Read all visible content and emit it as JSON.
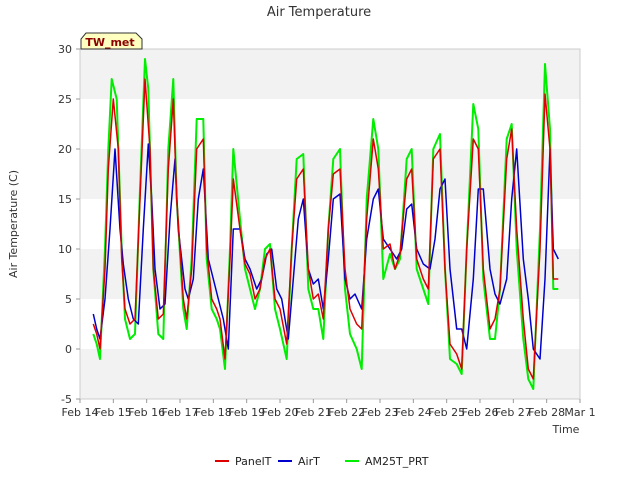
{
  "chart_data": {
    "type": "line",
    "title": "Air Temperature",
    "xlabel": "Time",
    "ylabel": "Air Temperature (C)",
    "station_label": "TW_met",
    "ylim": [
      -5,
      30
    ],
    "yticks": [
      -5,
      0,
      5,
      10,
      15,
      20,
      25,
      30
    ],
    "xlim": [
      14,
      29
    ],
    "xticks": [
      14,
      15,
      16,
      17,
      18,
      19,
      20,
      21,
      22,
      23,
      24,
      25,
      26,
      27,
      28,
      29
    ],
    "xtick_labels": [
      "Feb 14",
      "Feb 15",
      "Feb 16",
      "Feb 17",
      "Feb 18",
      "Feb 19",
      "Feb 20",
      "Feb 21",
      "Feb 22",
      "Feb 23",
      "Feb 24",
      "Feb 25",
      "Feb 26",
      "Feb 27",
      "Feb 28",
      "Mar 1"
    ],
    "legend_position": "bottom-center",
    "grid": "alternating horizontal bands",
    "colors": {
      "PanelT": "#dd0000",
      "AirT": "#0000cc",
      "AM25T_PRT": "#00ee00",
      "band": "#f2f2f2",
      "station_bg": "#ffffc0"
    },
    "series": [
      {
        "name": "PanelT",
        "x": [
          14.4,
          14.5,
          14.6,
          14.75,
          14.85,
          15.0,
          15.15,
          15.25,
          15.35,
          15.5,
          15.65,
          15.8,
          15.95,
          16.1,
          16.2,
          16.35,
          16.5,
          16.65,
          16.8,
          16.9,
          17.1,
          17.2,
          17.35,
          17.5,
          17.7,
          17.8,
          17.95,
          18.1,
          18.2,
          18.35,
          18.5,
          18.6,
          18.8,
          18.95,
          19.1,
          19.25,
          19.4,
          19.55,
          19.7,
          19.85,
          20.0,
          20.2,
          20.35,
          20.5,
          20.7,
          20.85,
          21.0,
          21.15,
          21.3,
          21.45,
          21.6,
          21.8,
          21.95,
          22.1,
          22.3,
          22.45,
          22.6,
          22.8,
          22.95,
          23.1,
          23.3,
          23.45,
          23.6,
          23.8,
          23.95,
          24.1,
          24.3,
          24.45,
          24.6,
          24.8,
          24.95,
          25.1,
          25.3,
          25.45,
          25.6,
          25.8,
          25.95,
          26.1,
          26.3,
          26.45,
          26.6,
          26.8,
          26.95,
          27.1,
          27.3,
          27.45,
          27.6,
          27.8,
          27.95,
          28.1,
          28.2,
          28.35
        ],
        "y": [
          2.5,
          1.5,
          0.0,
          8.0,
          18.0,
          25.0,
          20.0,
          9.0,
          4.0,
          2.5,
          3.0,
          15.0,
          27.0,
          20.0,
          8.0,
          3.0,
          3.5,
          18.0,
          25.0,
          15.0,
          5.0,
          3.0,
          8.0,
          20.0,
          21.0,
          10.0,
          5.0,
          4.0,
          3.0,
          -1.0,
          9.0,
          17.0,
          12.0,
          8.5,
          7.5,
          5.0,
          6.0,
          9.0,
          10.0,
          5.0,
          4.0,
          0.5,
          10.0,
          17.0,
          18.0,
          8.0,
          5.0,
          5.5,
          3.0,
          12.0,
          17.5,
          18.0,
          8.0,
          4.0,
          2.5,
          2.0,
          13.0,
          21.0,
          18.0,
          10.0,
          10.5,
          8.0,
          9.5,
          17.0,
          18.0,
          9.0,
          7.0,
          6.0,
          19.0,
          20.0,
          8.0,
          0.5,
          -0.5,
          -2.0,
          10.0,
          21.0,
          20.0,
          8.0,
          2.0,
          3.0,
          6.0,
          19.0,
          22.0,
          12.0,
          3.0,
          -2.0,
          -3.0,
          10.0,
          25.5,
          20.0,
          7.0,
          7.0
        ]
      },
      {
        "name": "AirT",
        "x": [
          14.4,
          14.5,
          14.6,
          14.75,
          14.9,
          15.05,
          15.2,
          15.3,
          15.45,
          15.6,
          15.75,
          15.9,
          16.05,
          16.15,
          16.25,
          16.4,
          16.55,
          16.7,
          16.85,
          16.95,
          17.15,
          17.25,
          17.4,
          17.55,
          17.7,
          17.85,
          18.0,
          18.15,
          18.3,
          18.45,
          18.6,
          18.8,
          18.95,
          19.1,
          19.3,
          19.45,
          19.6,
          19.75,
          19.9,
          20.05,
          20.25,
          20.4,
          20.55,
          20.7,
          20.85,
          21.0,
          21.15,
          21.3,
          21.45,
          21.6,
          21.8,
          21.95,
          22.1,
          22.25,
          22.45,
          22.6,
          22.8,
          22.95,
          23.1,
          23.3,
          23.5,
          23.65,
          23.8,
          23.95,
          24.1,
          24.3,
          24.5,
          24.65,
          24.8,
          24.95,
          25.1,
          25.3,
          25.45,
          25.6,
          25.8,
          25.95,
          26.1,
          26.3,
          26.45,
          26.6,
          26.8,
          26.95,
          27.1,
          27.3,
          27.45,
          27.6,
          27.8,
          27.95,
          28.1,
          28.2,
          28.35
        ],
        "y": [
          3.5,
          2.0,
          1.0,
          5.0,
          12.0,
          20.0,
          12.0,
          8.5,
          5.0,
          3.0,
          2.5,
          12.0,
          20.5,
          15.0,
          8.0,
          4.0,
          4.5,
          13.0,
          19.0,
          12.0,
          6.0,
          5.0,
          7.0,
          15.0,
          18.0,
          9.0,
          7.0,
          5.0,
          3.0,
          0.0,
          12.0,
          12.0,
          9.0,
          8.0,
          6.0,
          7.0,
          9.5,
          10.0,
          6.0,
          5.0,
          1.0,
          7.0,
          13.0,
          15.0,
          8.0,
          6.5,
          7.0,
          4.0,
          9.0,
          15.0,
          15.5,
          7.0,
          5.0,
          5.5,
          4.0,
          11.0,
          15.0,
          16.0,
          11.0,
          10.0,
          9.0,
          10.0,
          14.0,
          14.5,
          10.0,
          8.5,
          8.0,
          11.0,
          16.0,
          17.0,
          8.0,
          2.0,
          2.0,
          0.0,
          7.0,
          16.0,
          16.0,
          8.0,
          5.5,
          4.5,
          7.0,
          15.0,
          20.0,
          9.0,
          5.0,
          0.0,
          -1.0,
          7.0,
          20.0,
          10.0,
          9.0
        ]
      },
      {
        "name": "AM25T_PRT",
        "x": [
          14.4,
          14.5,
          14.6,
          14.75,
          14.85,
          14.95,
          15.1,
          15.25,
          15.35,
          15.5,
          15.65,
          15.8,
          15.95,
          16.05,
          16.2,
          16.35,
          16.5,
          16.65,
          16.8,
          16.9,
          17.1,
          17.2,
          17.35,
          17.5,
          17.7,
          17.8,
          17.95,
          18.1,
          18.2,
          18.35,
          18.5,
          18.6,
          18.8,
          18.95,
          19.1,
          19.25,
          19.4,
          19.55,
          19.7,
          19.85,
          20.0,
          20.2,
          20.35,
          20.5,
          20.7,
          20.85,
          21.0,
          21.15,
          21.3,
          21.45,
          21.6,
          21.8,
          21.95,
          22.1,
          22.3,
          22.45,
          22.6,
          22.8,
          22.95,
          23.1,
          23.3,
          23.45,
          23.6,
          23.8,
          23.95,
          24.1,
          24.3,
          24.45,
          24.6,
          24.8,
          24.95,
          25.1,
          25.3,
          25.45,
          25.6,
          25.8,
          25.95,
          26.1,
          26.3,
          26.45,
          26.6,
          26.8,
          26.95,
          27.1,
          27.3,
          27.45,
          27.6,
          27.8,
          27.95,
          28.1,
          28.2,
          28.35
        ],
        "y": [
          1.5,
          0.5,
          -1.0,
          10.0,
          20.0,
          27.0,
          25.0,
          10.0,
          3.0,
          1.0,
          1.5,
          16.0,
          29.0,
          26.0,
          8.0,
          1.5,
          1.0,
          20.0,
          27.0,
          15.0,
          4.0,
          2.0,
          9.0,
          23.0,
          23.0,
          9.0,
          4.0,
          3.0,
          2.0,
          -2.0,
          10.0,
          20.0,
          13.0,
          8.0,
          6.0,
          4.0,
          6.0,
          10.0,
          10.5,
          4.0,
          2.0,
          -1.0,
          10.0,
          19.0,
          19.5,
          6.0,
          4.0,
          4.0,
          1.0,
          12.0,
          19.0,
          20.0,
          6.0,
          1.5,
          0.0,
          -2.0,
          15.0,
          23.0,
          20.0,
          7.0,
          9.5,
          8.0,
          9.0,
          19.0,
          20.0,
          8.0,
          6.0,
          4.5,
          20.0,
          21.5,
          8.0,
          -1.0,
          -1.5,
          -2.5,
          10.0,
          24.5,
          22.0,
          7.0,
          1.0,
          1.0,
          6.0,
          21.0,
          22.5,
          10.0,
          1.0,
          -3.0,
          -4.0,
          12.0,
          28.5,
          22.0,
          6.0,
          6.0
        ]
      }
    ]
  }
}
